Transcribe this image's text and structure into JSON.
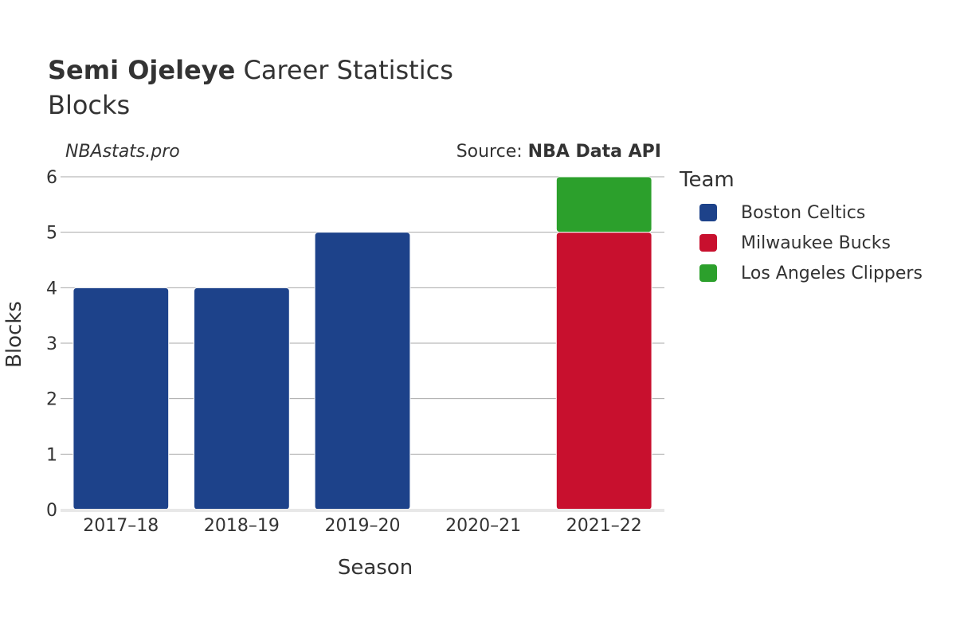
{
  "title": {
    "player": "Semi Ojeleye",
    "rest": "Career Statistics"
  },
  "subtitle": "Blocks",
  "watermark": "NBAstats.pro",
  "source": {
    "prefix": "Source: ",
    "name": "NBA Data API"
  },
  "chart_data": {
    "type": "bar",
    "stacked": true,
    "categories": [
      "2017–18",
      "2018–19",
      "2019–20",
      "2020–21",
      "2021–22"
    ],
    "series": [
      {
        "name": "Boston Celtics",
        "color": "#1d428a",
        "values": [
          4,
          4,
          5,
          0,
          0
        ]
      },
      {
        "name": "Milwaukee Bucks",
        "color": "#c8102e",
        "values": [
          0,
          0,
          0,
          0,
          5
        ]
      },
      {
        "name": "Los Angeles Clippers",
        "color": "#2ca02c",
        "values": [
          0,
          0,
          0,
          0,
          1
        ]
      }
    ],
    "xlabel": "Season",
    "ylabel": "Blocks",
    "ylim": [
      0,
      6
    ],
    "yticks": [
      0,
      1,
      2,
      3,
      4,
      5,
      6
    ],
    "grid": true,
    "legend_title": "Team",
    "legend_position": "right"
  }
}
